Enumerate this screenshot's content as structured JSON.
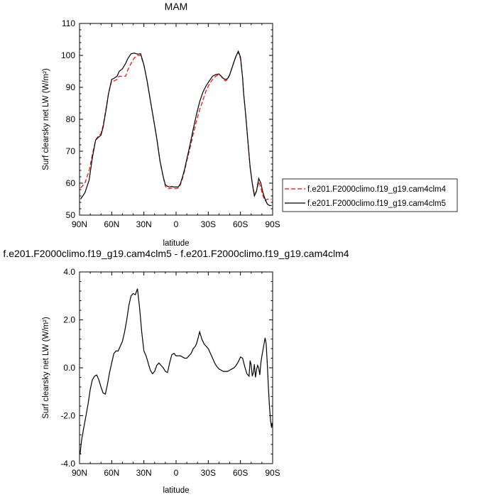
{
  "chart_data": [
    {
      "type": "line",
      "title": "MAM",
      "xlabel": "latitude",
      "ylabel": "Surf clearsky net LW (W/m²)",
      "xlim": [
        90,
        -90
      ],
      "ylim": [
        50,
        110
      ],
      "xticks": [
        90,
        60,
        30,
        0,
        -30,
        -60,
        -90
      ],
      "xtick_labels": [
        "90N",
        "60N",
        "30N",
        "0",
        "30S",
        "60S",
        "90S"
      ],
      "yticks": [
        50,
        60,
        70,
        80,
        90,
        100,
        110
      ],
      "ytick_labels": [
        "50",
        "60",
        "70",
        "80",
        "90",
        "100",
        "110"
      ],
      "legend_position": "right",
      "series": [
        {
          "name": "f.e201.F2000climo.f19_g19.cam4clm4",
          "color": "#ff0000",
          "dash": "dashed",
          "x": [
            89,
            85,
            81,
            78,
            75,
            72,
            70,
            68,
            65,
            63,
            60,
            58,
            55,
            53,
            50,
            47,
            45,
            42,
            39,
            36,
            33,
            30,
            27,
            24,
            21,
            18,
            15,
            12,
            10,
            8,
            6,
            4,
            2,
            0,
            -2,
            -4,
            -6,
            -8,
            -10,
            -13,
            -16,
            -19,
            -22,
            -25,
            -28,
            -31,
            -34,
            -37,
            -40,
            -42,
            -44,
            -46,
            -48,
            -50,
            -52,
            -54,
            -56,
            -58,
            -60,
            -62,
            -63,
            -65,
            -67,
            -69,
            -71,
            -73,
            -75,
            -77,
            -79,
            -81,
            -83,
            -85,
            -87,
            -89
          ],
          "y": [
            58.5,
            60,
            64,
            69,
            73.5,
            75,
            75.5,
            78,
            84,
            88,
            92,
            92,
            92.5,
            93.5,
            93.5,
            93.5,
            95.5,
            97.5,
            99.2,
            100,
            100,
            97,
            92,
            86,
            80,
            74,
            67,
            62,
            59,
            58.3,
            58.3,
            58.5,
            58.3,
            58.3,
            58.5,
            59.5,
            61.5,
            64,
            67,
            71,
            75.5,
            79.5,
            83,
            86,
            89,
            91,
            92.5,
            93.5,
            94,
            93.5,
            92.5,
            92,
            92.5,
            94,
            96,
            98,
            100,
            101,
            99,
            93,
            88,
            81,
            73,
            65,
            60,
            56.5,
            57.5,
            60.5,
            58.5,
            56,
            54.5,
            55,
            55,
            55
          ],
          "values": [
            58.5,
            60,
            64,
            69,
            73.5,
            75,
            75.5,
            78,
            84,
            88,
            92,
            92,
            92.5,
            93.5,
            93.5,
            93.5,
            95.5,
            97.5,
            99.2,
            100,
            100,
            97,
            92,
            86,
            80,
            74,
            67,
            62,
            59,
            58.3,
            58.3,
            58.5,
            58.3,
            58.3,
            58.5,
            59.5,
            61.5,
            64,
            67,
            71,
            75.5,
            79.5,
            83,
            86,
            89,
            91,
            92.5,
            93.5,
            94,
            93.5,
            92.5,
            92,
            92.5,
            94,
            96,
            98,
            100,
            101,
            99,
            93,
            88,
            81,
            73,
            65,
            60,
            56.5,
            57.5,
            60.5,
            58.5,
            56,
            54.5,
            55,
            55,
            55
          ]
        },
        {
          "name": "f.e201.F2000climo.f19_g19.cam4clm5",
          "color": "#000000",
          "dash": "solid",
          "x": [
            89,
            85,
            81,
            78,
            75,
            72,
            70,
            68,
            65,
            63,
            60,
            58,
            55,
            53,
            50,
            47,
            45,
            42,
            39,
            36,
            33,
            30,
            27,
            24,
            21,
            18,
            15,
            12,
            10,
            8,
            6,
            4,
            2,
            0,
            -2,
            -4,
            -6,
            -8,
            -10,
            -13,
            -16,
            -19,
            -22,
            -25,
            -28,
            -31,
            -34,
            -37,
            -40,
            -42,
            -44,
            -46,
            -48,
            -50,
            -52,
            -54,
            -56,
            -58,
            -60,
            -62,
            -63,
            -65,
            -67,
            -69,
            -71,
            -73,
            -75,
            -77,
            -79,
            -81,
            -83,
            -85,
            -87,
            -89
          ],
          "y": [
            55,
            57,
            61,
            68,
            73.5,
            74.5,
            75,
            77.5,
            83.5,
            88,
            92.5,
            92.8,
            93.5,
            95,
            95.8,
            97.5,
            99,
            100.5,
            100.7,
            100.4,
            100.5,
            97,
            92,
            86,
            80,
            74,
            67,
            62,
            59.5,
            59,
            58.8,
            59,
            58.8,
            58.8,
            58.8,
            59.8,
            62,
            64.5,
            67.5,
            72,
            77,
            81.5,
            85.5,
            88.5,
            90.5,
            92,
            93.5,
            94,
            94.2,
            93.5,
            92.8,
            92.5,
            92.7,
            94,
            96,
            98,
            99.8,
            101.3,
            99.5,
            93,
            88,
            81,
            73,
            65,
            60,
            56,
            57.5,
            61.5,
            60,
            57,
            55,
            53.5,
            53,
            53
          ]
        }
      ]
    },
    {
      "type": "line",
      "title": "f.e201.F2000climo.f19_g19.cam4clm5 - f.e201.F2000climo.f19_g19.cam4clm4",
      "xlabel": "latitude",
      "ylabel": "Surf clearsky net LW (W/m²)",
      "xlim": [
        90,
        -90
      ],
      "ylim": [
        -4.0,
        4.0
      ],
      "xticks": [
        90,
        60,
        30,
        0,
        -30,
        -60,
        -90
      ],
      "xtick_labels": [
        "90N",
        "60N",
        "30N",
        "0",
        "30S",
        "60S",
        "90S"
      ],
      "yticks": [
        -4,
        -2,
        0,
        2,
        4
      ],
      "ytick_labels": [
        "-4.0",
        "-2.0",
        "0.0",
        "2.0",
        "4.0"
      ],
      "series": [
        {
          "color": "#000000",
          "x": [
            89.5,
            88,
            86,
            84,
            82,
            80,
            78,
            76,
            74,
            72,
            70,
            68,
            66,
            64,
            62,
            60,
            58,
            56,
            54,
            52,
            50,
            48,
            46,
            44,
            42,
            40,
            38,
            36,
            34,
            32,
            30,
            28,
            26,
            24,
            22,
            20,
            18,
            16,
            14,
            12,
            10,
            8,
            6,
            4,
            2,
            0,
            -2,
            -4,
            -6,
            -8,
            -10,
            -12,
            -14,
            -16,
            -18,
            -19,
            -20,
            -22,
            -24,
            -26,
            -28,
            -30,
            -32,
            -34,
            -36,
            -38,
            -40,
            -42,
            -44,
            -46,
            -48,
            -50,
            -52,
            -54,
            -56,
            -58,
            -60,
            -62,
            -64,
            -66,
            -68,
            -69,
            -70,
            -71,
            -72,
            -73,
            -74,
            -75,
            -76,
            -77,
            -78,
            -79,
            -80,
            -81,
            -82,
            -83,
            -84,
            -85,
            -86,
            -87,
            -88,
            -89,
            -89.5
          ],
          "y": [
            -3.6,
            -3.0,
            -2.5,
            -2.0,
            -1.5,
            -0.9,
            -0.5,
            -0.35,
            -0.3,
            -0.5,
            -0.8,
            -1.05,
            -1.1,
            -0.7,
            -0.2,
            0.2,
            0.6,
            0.7,
            0.7,
            0.9,
            1.1,
            1.5,
            2.0,
            2.6,
            3.0,
            3.1,
            3.05,
            3.3,
            2.5,
            1.5,
            0.7,
            0.5,
            0.2,
            -0.1,
            -0.25,
            -0.15,
            0.1,
            0.2,
            0.1,
            0.0,
            -0.15,
            -0.2,
            0.2,
            0.55,
            0.6,
            0.5,
            0.5,
            0.5,
            0.45,
            0.4,
            0.4,
            0.5,
            0.6,
            0.8,
            0.9,
            1.0,
            1.15,
            1.5,
            1.2,
            1.0,
            0.9,
            0.8,
            0.6,
            0.4,
            0.2,
            0.05,
            -0.05,
            -0.1,
            -0.15,
            -0.15,
            -0.15,
            -0.1,
            -0.05,
            0.0,
            0.1,
            0.25,
            0.45,
            0.4,
            0.05,
            -0.25,
            -0.35,
            0.3,
            0.1,
            -0.35,
            -0.2,
            0.15,
            -0.4,
            -0.1,
            0.1,
            0.0,
            -0.3,
            0.2,
            0.5,
            0.75,
            1.0,
            1.25,
            1.0,
            0.2,
            -0.8,
            -1.6,
            -2.2,
            -2.5,
            -2.3
          ]
        }
      ]
    }
  ]
}
